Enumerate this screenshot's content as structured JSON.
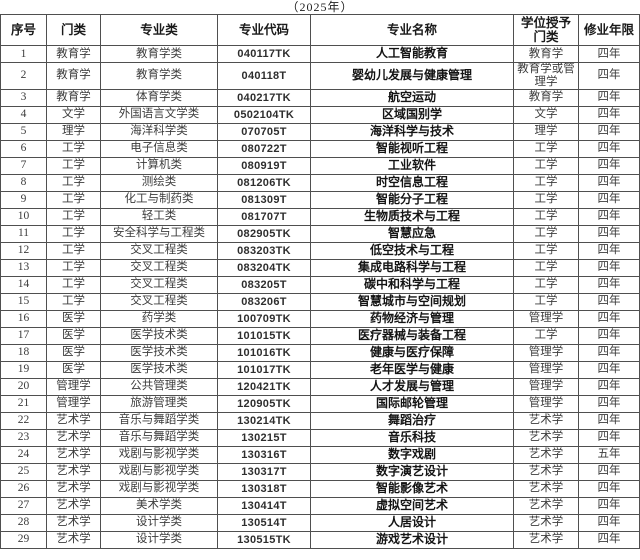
{
  "page": {
    "title": "（2025年）"
  },
  "colors": {
    "border": "#4f4f4f",
    "body_text": "#3c3c3c",
    "emphasis_text": "#141414",
    "background": "#ffffff"
  },
  "table": {
    "headers": [
      "序号",
      "门类",
      "专业类",
      "专业代码",
      "专业名称",
      "学位授予门类",
      "修业年限"
    ],
    "rows": [
      [
        "1",
        "教育学",
        "教育学类",
        "040117TK",
        "人工智能教育",
        "教育学",
        "四年"
      ],
      [
        "2",
        "教育学",
        "教育学类",
        "040118T",
        "婴幼儿发展与健康管理",
        "教育学或管理学",
        "四年"
      ],
      [
        "3",
        "教育学",
        "体育学类",
        "040217TK",
        "航空运动",
        "教育学",
        "四年"
      ],
      [
        "4",
        "文学",
        "外国语言文学类",
        "0502104TK",
        "区域国别学",
        "文学",
        "四年"
      ],
      [
        "5",
        "理学",
        "海洋科学类",
        "070705T",
        "海洋科学与技术",
        "理学",
        "四年"
      ],
      [
        "6",
        "工学",
        "电子信息类",
        "080722T",
        "智能视听工程",
        "工学",
        "四年"
      ],
      [
        "7",
        "工学",
        "计算机类",
        "080919T",
        "工业软件",
        "工学",
        "四年"
      ],
      [
        "8",
        "工学",
        "测绘类",
        "081206TK",
        "时空信息工程",
        "工学",
        "四年"
      ],
      [
        "9",
        "工学",
        "化工与制药类",
        "081309T",
        "智能分子工程",
        "工学",
        "四年"
      ],
      [
        "10",
        "工学",
        "轻工类",
        "081707T",
        "生物质技术与工程",
        "工学",
        "四年"
      ],
      [
        "11",
        "工学",
        "安全科学与工程类",
        "082905TK",
        "智慧应急",
        "工学",
        "四年"
      ],
      [
        "12",
        "工学",
        "交叉工程类",
        "083203TK",
        "低空技术与工程",
        "工学",
        "四年"
      ],
      [
        "13",
        "工学",
        "交叉工程类",
        "083204TK",
        "集成电路科学与工程",
        "工学",
        "四年"
      ],
      [
        "14",
        "工学",
        "交叉工程类",
        "083205T",
        "碳中和科学与工程",
        "工学",
        "四年"
      ],
      [
        "15",
        "工学",
        "交叉工程类",
        "083206T",
        "智慧城市与空间规划",
        "工学",
        "四年"
      ],
      [
        "16",
        "医学",
        "药学类",
        "100709TK",
        "药物经济与管理",
        "管理学",
        "四年"
      ],
      [
        "17",
        "医学",
        "医学技术类",
        "101015TK",
        "医疗器械与装备工程",
        "工学",
        "四年"
      ],
      [
        "18",
        "医学",
        "医学技术类",
        "101016TK",
        "健康与医疗保障",
        "管理学",
        "四年"
      ],
      [
        "19",
        "医学",
        "医学技术类",
        "101017TK",
        "老年医学与健康",
        "管理学",
        "四年"
      ],
      [
        "20",
        "管理学",
        "公共管理类",
        "120421TK",
        "人才发展与管理",
        "管理学",
        "四年"
      ],
      [
        "21",
        "管理学",
        "旅游管理类",
        "120905TK",
        "国际邮轮管理",
        "管理学",
        "四年"
      ],
      [
        "22",
        "艺术学",
        "音乐与舞蹈学类",
        "130214TK",
        "舞蹈治疗",
        "艺术学",
        "四年"
      ],
      [
        "23",
        "艺术学",
        "音乐与舞蹈学类",
        "130215T",
        "音乐科技",
        "艺术学",
        "四年"
      ],
      [
        "24",
        "艺术学",
        "戏剧与影视学类",
        "130316T",
        "数字戏剧",
        "艺术学",
        "五年"
      ],
      [
        "25",
        "艺术学",
        "戏剧与影视学类",
        "130317T",
        "数字演艺设计",
        "艺术学",
        "四年"
      ],
      [
        "26",
        "艺术学",
        "戏剧与影视学类",
        "130318T",
        "智能影像艺术",
        "艺术学",
        "四年"
      ],
      [
        "27",
        "艺术学",
        "美术学类",
        "130414T",
        "虚拟空间艺术",
        "艺术学",
        "四年"
      ],
      [
        "28",
        "艺术学",
        "设计学类",
        "130514T",
        "人居设计",
        "艺术学",
        "四年"
      ],
      [
        "29",
        "艺术学",
        "设计学类",
        "130515TK",
        "游戏艺术设计",
        "艺术学",
        "四年"
      ]
    ]
  }
}
